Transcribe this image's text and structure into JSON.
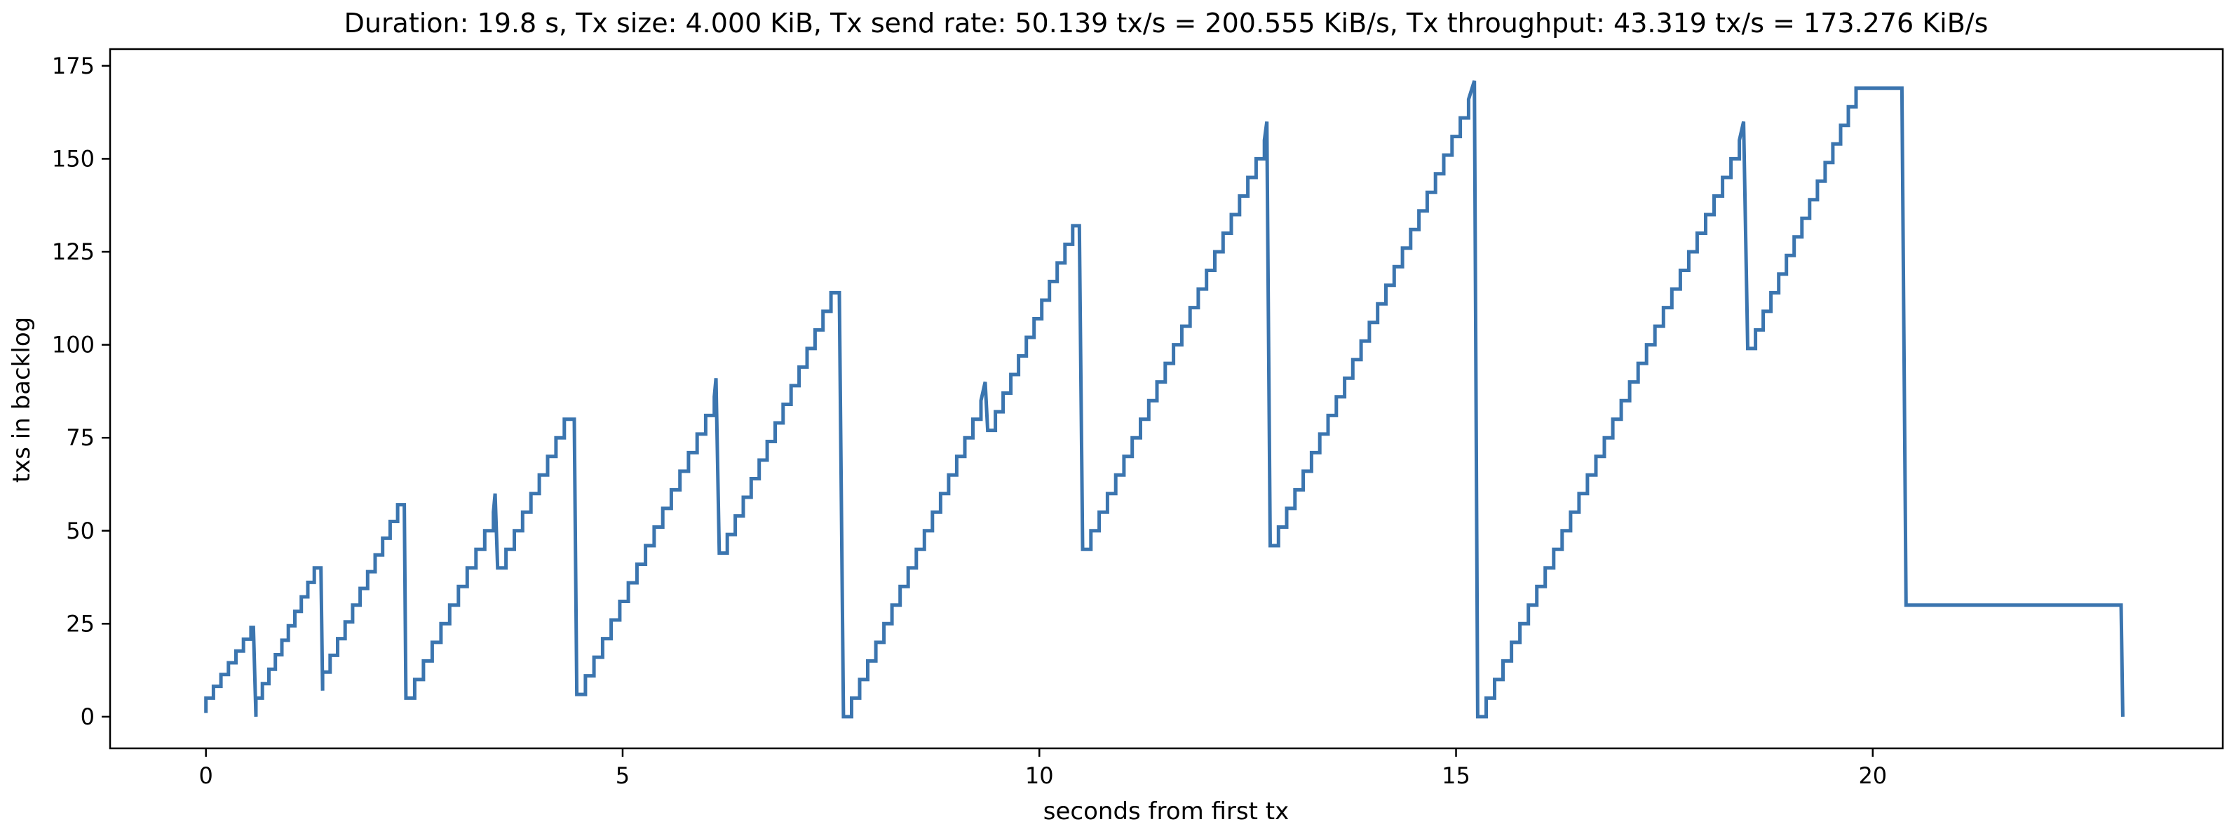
{
  "chart_data": {
    "type": "line",
    "title": "Duration: 19.8 s, Tx size: 4.000 KiB, Tx send rate: 50.139 tx/s = 200.555 KiB/s, Tx throughput: 43.319 tx/s = 173.276 KiB/s",
    "xlabel": "seconds from first tx",
    "ylabel": "txs in backlog",
    "xlim": [
      -1.15,
      24.2
    ],
    "ylim": [
      -8.5,
      179.5
    ],
    "xticks": [
      0,
      5,
      10,
      15,
      20
    ],
    "xtick_labels": [
      "0",
      "5",
      "10",
      "15",
      "20"
    ],
    "yticks": [
      0,
      25,
      50,
      75,
      100,
      125,
      150,
      175
    ],
    "ytick_labels": [
      "0",
      "25",
      "50",
      "75",
      "100",
      "125",
      "150",
      "175"
    ],
    "grid": false,
    "legend": "none",
    "series": [
      {
        "color": "#3b75af",
        "segments": [
          {
            "type": "point",
            "x": 0.0,
            "y": 1
          },
          {
            "type": "ramp",
            "x0": 0.0,
            "y0": 5,
            "x1": 0.54,
            "y1": 24,
            "steps": 6
          },
          {
            "type": "point",
            "x": 0.57,
            "y": 24
          },
          {
            "type": "point",
            "x": 0.6,
            "y": 0
          },
          {
            "type": "ramp",
            "x0": 0.6,
            "y0": 5,
            "x1": 1.3,
            "y1": 40,
            "steps": 9
          },
          {
            "type": "point",
            "x": 1.38,
            "y": 40
          },
          {
            "type": "point",
            "x": 1.4,
            "y": 7
          },
          {
            "type": "ramp",
            "x0": 1.4,
            "y0": 12,
            "x1": 2.3,
            "y1": 57,
            "steps": 10
          },
          {
            "type": "point",
            "x": 2.38,
            "y": 57
          },
          {
            "type": "point",
            "x": 2.4,
            "y": 5
          },
          {
            "type": "ramp",
            "x0": 2.4,
            "y0": 5,
            "x1": 3.45,
            "y1": 55,
            "steps": 10
          },
          {
            "type": "point",
            "x": 3.47,
            "y": 60
          },
          {
            "type": "point",
            "x": 3.5,
            "y": 40
          },
          {
            "type": "ramp",
            "x0": 3.5,
            "y0": 40,
            "x1": 4.3,
            "y1": 80,
            "steps": 8
          },
          {
            "type": "point",
            "x": 4.42,
            "y": 80
          },
          {
            "type": "point",
            "x": 4.45,
            "y": 6
          },
          {
            "type": "ramp",
            "x0": 4.45,
            "y0": 6,
            "x1": 6.1,
            "y1": 86,
            "steps": 16
          },
          {
            "type": "point",
            "x": 6.12,
            "y": 91
          },
          {
            "type": "point",
            "x": 6.16,
            "y": 44
          },
          {
            "type": "ramp",
            "x0": 6.16,
            "y0": 44,
            "x1": 7.5,
            "y1": 114,
            "steps": 14
          },
          {
            "type": "point",
            "x": 7.6,
            "y": 114
          },
          {
            "type": "point",
            "x": 7.65,
            "y": 0
          },
          {
            "type": "ramp",
            "x0": 7.65,
            "y0": 0,
            "x1": 9.3,
            "y1": 85,
            "steps": 17
          },
          {
            "type": "point",
            "x": 9.35,
            "y": 90
          },
          {
            "type": "point",
            "x": 9.38,
            "y": 77
          },
          {
            "type": "ramp",
            "x0": 9.38,
            "y0": 77,
            "x1": 10.4,
            "y1": 132,
            "steps": 11
          },
          {
            "type": "point",
            "x": 10.48,
            "y": 132
          },
          {
            "type": "point",
            "x": 10.52,
            "y": 45
          },
          {
            "type": "ramp",
            "x0": 10.52,
            "y0": 45,
            "x1": 12.7,
            "y1": 155,
            "steps": 22
          },
          {
            "type": "point",
            "x": 12.73,
            "y": 160
          },
          {
            "type": "point",
            "x": 12.77,
            "y": 46
          },
          {
            "type": "ramp",
            "x0": 12.77,
            "y0": 46,
            "x1": 15.15,
            "y1": 166,
            "steps": 24
          },
          {
            "type": "point",
            "x": 15.22,
            "y": 171
          },
          {
            "type": "point",
            "x": 15.26,
            "y": 0
          },
          {
            "type": "ramp",
            "x0": 15.26,
            "y0": 0,
            "x1": 18.4,
            "y1": 155,
            "steps": 31
          },
          {
            "type": "point",
            "x": 18.45,
            "y": 160
          },
          {
            "type": "point",
            "x": 18.5,
            "y": 99
          },
          {
            "type": "ramp",
            "x0": 18.5,
            "y0": 99,
            "x1": 19.8,
            "y1": 169,
            "steps": 14
          },
          {
            "type": "point",
            "x": 20.35,
            "y": 169
          },
          {
            "type": "point",
            "x": 20.4,
            "y": 30
          },
          {
            "type": "point",
            "x": 22.98,
            "y": 30
          },
          {
            "type": "point",
            "x": 23.0,
            "y": 0
          }
        ]
      }
    ]
  }
}
